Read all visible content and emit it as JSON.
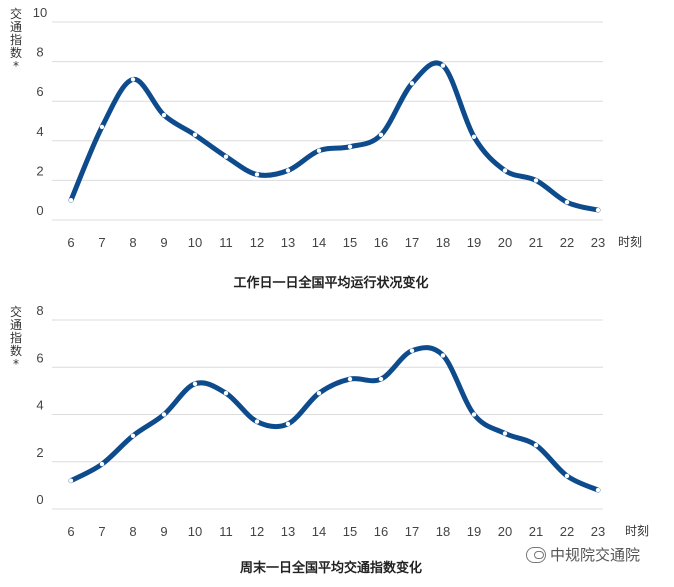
{
  "chart_data": [
    {
      "type": "line",
      "title": "工作日一日全国平均运行状况变化",
      "ylabel": "交通指数*",
      "xlabel": "时刻",
      "categories": [
        "6",
        "7",
        "8",
        "9",
        "10",
        "11",
        "12",
        "13",
        "14",
        "15",
        "16",
        "17",
        "18",
        "19",
        "20",
        "21",
        "22",
        "23"
      ],
      "values": [
        1.0,
        4.7,
        7.1,
        5.3,
        4.3,
        3.2,
        2.3,
        2.5,
        3.5,
        3.7,
        4.3,
        6.9,
        7.8,
        4.2,
        2.5,
        2.0,
        0.9,
        0.5
      ],
      "ylim": [
        0,
        10
      ],
      "yticks": [
        "0",
        "2",
        "4",
        "6",
        "8",
        "10"
      ],
      "grid": true
    },
    {
      "type": "line",
      "title": "周末一日全国平均交通指数变化",
      "ylabel": "交通指数*",
      "xlabel": "时刻",
      "categories": [
        "6",
        "7",
        "8",
        "9",
        "10",
        "11",
        "12",
        "13",
        "14",
        "15",
        "16",
        "17",
        "18",
        "19",
        "20",
        "21",
        "22",
        "23"
      ],
      "values": [
        1.2,
        1.9,
        3.1,
        4.0,
        5.3,
        4.9,
        3.7,
        3.6,
        4.9,
        5.5,
        5.5,
        6.7,
        6.5,
        4.0,
        3.2,
        2.7,
        1.4,
        0.8
      ],
      "ylim": [
        0,
        8
      ],
      "yticks": [
        "0",
        "2",
        "4",
        "6",
        "8"
      ],
      "grid": true
    }
  ],
  "watermark": {
    "text": "中规院交通院",
    "icon": "wechat-icon"
  },
  "colors": {
    "line": "#0d4b8c",
    "grid": "#dcdcdc"
  }
}
